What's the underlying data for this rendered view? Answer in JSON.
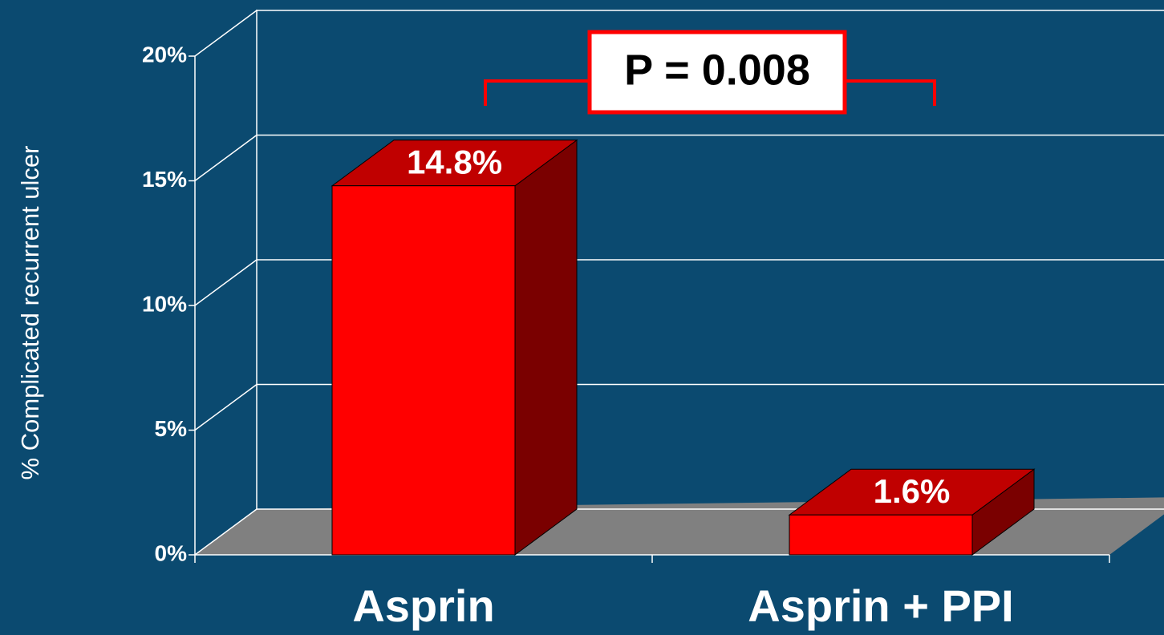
{
  "chart_data": {
    "type": "bar3d",
    "y_label": "% Complicated recurrent ulcer",
    "categories": [
      "Asprin",
      "Asprin + PPI"
    ],
    "values": [
      14.8,
      1.6
    ],
    "value_labels": [
      "14.8%",
      "1.6%"
    ],
    "color": "#ff0000",
    "ylim": [
      0,
      20
    ],
    "yticks": [
      {
        "value": 0,
        "label": "0%"
      },
      {
        "value": 5,
        "label": "5%"
      },
      {
        "value": 10,
        "label": "10%"
      },
      {
        "value": 15,
        "label": "15%"
      },
      {
        "value": 20,
        "label": "20%"
      }
    ],
    "grid": true,
    "annotation": "P = 0.008"
  }
}
